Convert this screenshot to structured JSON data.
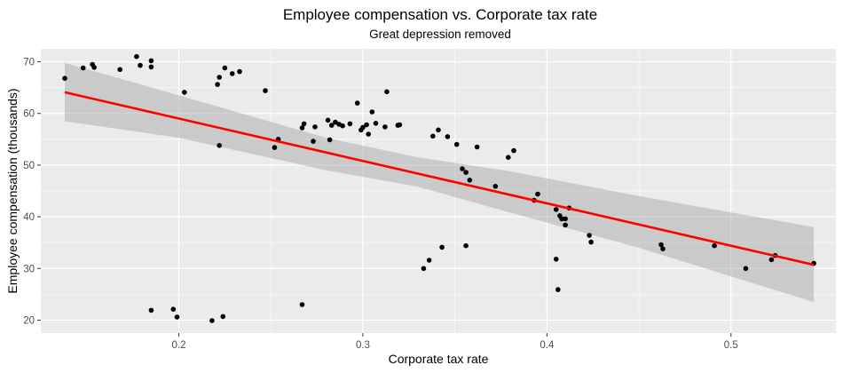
{
  "chart_data": {
    "type": "scatter",
    "title": "Employee compensation vs. Corporate tax rate",
    "subtitle": "Great depression removed",
    "xlabel": "Corporate tax rate",
    "ylabel": "Employee compensation (thousands)",
    "xlim": [
      0.125,
      0.557
    ],
    "ylim": [
      17.5,
      72.5
    ],
    "x_ticks": [
      0.2,
      0.3,
      0.4,
      0.5
    ],
    "x_tick_labels": [
      "0.2",
      "0.3",
      "0.4",
      "0.5"
    ],
    "y_ticks": [
      20,
      30,
      40,
      50,
      60,
      70
    ],
    "y_tick_labels": [
      "20",
      "30",
      "40",
      "50",
      "60",
      "70"
    ],
    "grid": true,
    "colors": {
      "panel": "#ebebeb",
      "grid": "#ffffff",
      "points": "#000000",
      "fit_line": "#ff0000",
      "confidence_band": "#999999"
    },
    "points": [
      [
        0.138,
        66.8
      ],
      [
        0.148,
        68.8
      ],
      [
        0.153,
        69.5
      ],
      [
        0.154,
        68.9
      ],
      [
        0.168,
        68.5
      ],
      [
        0.177,
        71.0
      ],
      [
        0.179,
        69.3
      ],
      [
        0.185,
        70.2
      ],
      [
        0.185,
        69.0
      ],
      [
        0.203,
        64.1
      ],
      [
        0.221,
        65.6
      ],
      [
        0.222,
        67.0
      ],
      [
        0.225,
        68.8
      ],
      [
        0.229,
        67.7
      ],
      [
        0.233,
        68.1
      ],
      [
        0.222,
        53.8
      ],
      [
        0.247,
        64.4
      ],
      [
        0.252,
        53.4
      ],
      [
        0.254,
        55.0
      ],
      [
        0.267,
        57.2
      ],
      [
        0.268,
        58.0
      ],
      [
        0.273,
        54.6
      ],
      [
        0.274,
        57.4
      ],
      [
        0.281,
        58.7
      ],
      [
        0.283,
        57.7
      ],
      [
        0.285,
        58.3
      ],
      [
        0.287,
        57.9
      ],
      [
        0.289,
        57.6
      ],
      [
        0.282,
        54.9
      ],
      [
        0.293,
        58.0
      ],
      [
        0.297,
        62.0
      ],
      [
        0.299,
        56.8
      ],
      [
        0.3,
        57.3
      ],
      [
        0.302,
        57.8
      ],
      [
        0.303,
        56.0
      ],
      [
        0.305,
        60.3
      ],
      [
        0.307,
        58.1
      ],
      [
        0.312,
        57.4
      ],
      [
        0.313,
        64.2
      ],
      [
        0.319,
        57.7
      ],
      [
        0.32,
        57.8
      ],
      [
        0.338,
        55.6
      ],
      [
        0.341,
        56.8
      ],
      [
        0.346,
        55.5
      ],
      [
        0.351,
        54.0
      ],
      [
        0.354,
        49.3
      ],
      [
        0.356,
        48.6
      ],
      [
        0.358,
        47.1
      ],
      [
        0.362,
        53.5
      ],
      [
        0.372,
        45.9
      ],
      [
        0.379,
        51.5
      ],
      [
        0.382,
        52.8
      ],
      [
        0.393,
        43.2
      ],
      [
        0.395,
        44.4
      ],
      [
        0.405,
        41.4
      ],
      [
        0.407,
        40.2
      ],
      [
        0.408,
        39.6
      ],
      [
        0.41,
        39.6
      ],
      [
        0.41,
        38.4
      ],
      [
        0.412,
        41.7
      ],
      [
        0.405,
        31.8
      ],
      [
        0.423,
        36.4
      ],
      [
        0.424,
        35.1
      ],
      [
        0.462,
        34.6
      ],
      [
        0.463,
        33.8
      ],
      [
        0.491,
        34.4
      ],
      [
        0.508,
        30.0
      ],
      [
        0.522,
        31.7
      ],
      [
        0.524,
        32.5
      ],
      [
        0.545,
        31.0
      ],
      [
        0.333,
        30.0
      ],
      [
        0.336,
        31.6
      ],
      [
        0.343,
        34.1
      ],
      [
        0.356,
        34.4
      ],
      [
        0.406,
        25.9
      ],
      [
        0.267,
        23.0
      ],
      [
        0.185,
        21.9
      ],
      [
        0.197,
        22.1
      ],
      [
        0.199,
        20.6
      ],
      [
        0.218,
        19.9
      ],
      [
        0.224,
        20.7
      ]
    ],
    "fit": {
      "x": [
        0.138,
        0.545
      ],
      "y": [
        64.1,
        30.7
      ]
    },
    "confidence_band": {
      "x": [
        0.138,
        0.2,
        0.28,
        0.33,
        0.38,
        0.45,
        0.545
      ],
      "lower": [
        58.5,
        55.3,
        49.0,
        45.8,
        40.8,
        34.0,
        23.5
      ],
      "upper": [
        69.8,
        63.5,
        55.3,
        51.5,
        48.8,
        44.0,
        38.0
      ]
    }
  }
}
